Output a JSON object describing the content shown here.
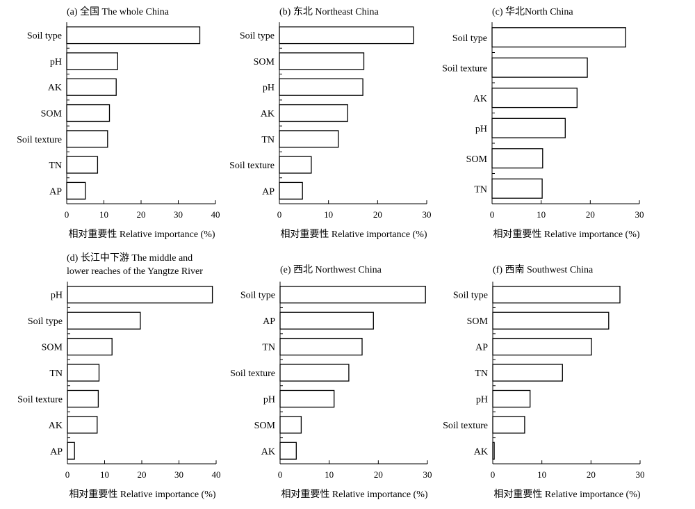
{
  "chart_data": [
    {
      "type": "bar",
      "orientation": "horizontal",
      "title": [
        "(a) 全国 The whole China"
      ],
      "categories": [
        "Soil type",
        "pH",
        "AK",
        "SOM",
        "Soil texture",
        "TN",
        "AP"
      ],
      "values": [
        35.8,
        13.7,
        13.3,
        11.5,
        11.0,
        8.3,
        5.0
      ],
      "xlabel": "相对重要性 Relative importance (%)",
      "xlim": [
        0,
        40
      ],
      "xticks": [
        0,
        10,
        20,
        30,
        40
      ]
    },
    {
      "type": "bar",
      "orientation": "horizontal",
      "title": [
        "(b) 东北 Northeast China"
      ],
      "categories": [
        "Soil type",
        "SOM",
        "pH",
        "AK",
        "TN",
        "Soil texture",
        "AP"
      ],
      "values": [
        27.3,
        17.2,
        17.0,
        13.9,
        12.0,
        6.5,
        4.7
      ],
      "xlabel": "相对重要性 Relative importance (%)",
      "xlim": [
        0,
        30
      ],
      "xticks": [
        0,
        10,
        20,
        30
      ]
    },
    {
      "type": "bar",
      "orientation": "horizontal",
      "title": [
        "(c) 华北North China"
      ],
      "categories": [
        "Soil type",
        "Soil texture",
        "AK",
        "pH",
        "SOM",
        "TN"
      ],
      "values": [
        27.2,
        19.4,
        17.3,
        14.9,
        10.3,
        10.2
      ],
      "xlabel": "相对重要性 Relative importance (%)",
      "xlim": [
        0,
        30
      ],
      "xticks": [
        0,
        10,
        20,
        30
      ]
    },
    {
      "type": "bar",
      "orientation": "horizontal",
      "title": [
        "(d) 长江中下游 The middle and",
        "lower reaches of the Yangtze River"
      ],
      "categories": [
        "pH",
        "Soil type",
        "SOM",
        "TN",
        "Soil texture",
        "AK",
        "AP"
      ],
      "values": [
        39.0,
        19.6,
        12.0,
        8.5,
        8.3,
        8.0,
        1.9
      ],
      "xlabel": "相对重要性 Relative importance (%)",
      "xlim": [
        0,
        40
      ],
      "xticks": [
        0,
        10,
        20,
        30,
        40
      ]
    },
    {
      "type": "bar",
      "orientation": "horizontal",
      "title": [
        "(e) 西北 Northwest China"
      ],
      "categories": [
        "Soil type",
        "AP",
        "TN",
        "Soil texture",
        "pH",
        "SOM",
        "AK"
      ],
      "values": [
        29.6,
        19.0,
        16.7,
        14.0,
        11.0,
        4.3,
        3.3
      ],
      "xlabel": "相对重要性 Relative importance (%)",
      "xlim": [
        0,
        30
      ],
      "xticks": [
        0,
        10,
        20,
        30
      ]
    },
    {
      "type": "bar",
      "orientation": "horizontal",
      "title": [
        "(f) 西南 Southwest China"
      ],
      "categories": [
        "Soil type",
        "SOM",
        "AP",
        "TN",
        "pH",
        "Soil texture",
        "AK"
      ],
      "values": [
        25.9,
        23.6,
        20.1,
        14.2,
        7.6,
        6.5,
        0.3
      ],
      "xlabel": "相对重要性 Relative importance (%)",
      "xlim": [
        0,
        30
      ],
      "xticks": [
        0,
        10,
        20,
        30
      ]
    }
  ]
}
